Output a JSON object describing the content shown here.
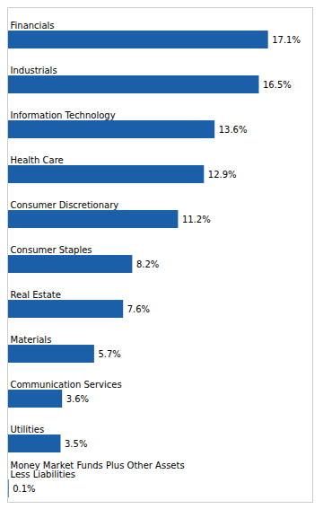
{
  "chart_data": {
    "type": "bar",
    "orientation": "horizontal",
    "categories": [
      "Financials",
      "Industrials",
      "Information Technology",
      "Health Care",
      "Consumer Discretionary",
      "Consumer Staples",
      "Real Estate",
      "Materials",
      "Communication Services",
      "Utilities",
      "Money Market Funds Plus Other Assets\nLess Liabilities"
    ],
    "values": [
      17.1,
      16.5,
      13.6,
      12.9,
      11.2,
      8.2,
      7.6,
      5.7,
      3.6,
      3.5,
      0.1
    ],
    "value_labels": [
      "17.1%",
      "16.5%",
      "13.6%",
      "12.9%",
      "11.2%",
      "8.2%",
      "7.6%",
      "5.7%",
      "3.6%",
      "3.5%",
      "0.1%"
    ],
    "color": "#1a5fa8",
    "xlim": [
      0,
      20
    ],
    "tick_labels": false,
    "data_labels": true,
    "grid": false
  }
}
